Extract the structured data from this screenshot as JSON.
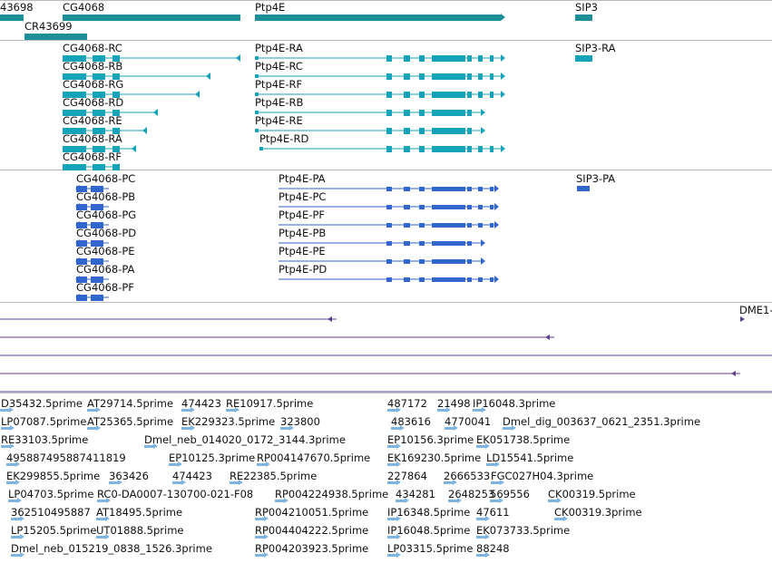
{
  "colors": {
    "gene": "#1e8f99",
    "transcript": "#14a3b8",
    "protein": "#3366cc",
    "alignment": "#5b3f8f",
    "est": "#7fb3e0",
    "divider": "#bbbbbb"
  },
  "genes": {
    "labels": [
      {
        "text": "43698"
      },
      {
        "text": "CG4068"
      },
      {
        "text": "Ptp4E"
      },
      {
        "text": "SIP3"
      },
      {
        "text": "CR43699"
      }
    ]
  },
  "transcripts": {
    "labels": [
      {
        "text": "CG4068-RC"
      },
      {
        "text": "CG4068-RB"
      },
      {
        "text": "CG4068-RG"
      },
      {
        "text": "CG4068-RD"
      },
      {
        "text": "CG4068-RE"
      },
      {
        "text": "CG4068-RA"
      },
      {
        "text": "CG4068-RF"
      },
      {
        "text": "Ptp4E-RA"
      },
      {
        "text": "Ptp4E-RC"
      },
      {
        "text": "Ptp4E-RF"
      },
      {
        "text": "Ptp4E-RB"
      },
      {
        "text": "Ptp4E-RE"
      },
      {
        "text": "Ptp4E-RD"
      },
      {
        "text": "SIP3-RA"
      }
    ]
  },
  "proteins": {
    "labels": [
      {
        "text": "CG4068-PC"
      },
      {
        "text": "CG4068-PB"
      },
      {
        "text": "CG4068-PG"
      },
      {
        "text": "CG4068-PD"
      },
      {
        "text": "CG4068-PE"
      },
      {
        "text": "CG4068-PA"
      },
      {
        "text": "CG4068-PF"
      },
      {
        "text": "Ptp4E-PA"
      },
      {
        "text": "Ptp4E-PC"
      },
      {
        "text": "Ptp4E-PF"
      },
      {
        "text": "Ptp4E-PB"
      },
      {
        "text": "Ptp4E-PE"
      },
      {
        "text": "Ptp4E-PD"
      },
      {
        "text": "SIP3-PA"
      }
    ]
  },
  "alignments": {
    "labels": [
      {
        "text": "DME1-"
      }
    ]
  },
  "ests": {
    "labels": [
      {
        "text": "D35432.5prime"
      },
      {
        "text": "AT29714.5prime"
      },
      {
        "text": "474423"
      },
      {
        "text": "RE10917.5prime"
      },
      {
        "text": "487172"
      },
      {
        "text": "21498"
      },
      {
        "text": "IP16048.3prime"
      },
      {
        "text": "LP07087.5prime"
      },
      {
        "text": "AT25365.5prime"
      },
      {
        "text": "EK229323.5prime"
      },
      {
        "text": "323800"
      },
      {
        "text": "483616"
      },
      {
        "text": "4770041"
      },
      {
        "text": "Dmel_dig_003637_0621_2351.3prime"
      },
      {
        "text": "RE33103.5prime"
      },
      {
        "text": "Dmel_neb_014020_0172_3144.3prime"
      },
      {
        "text": "EP10156.3prime"
      },
      {
        "text": "EK051738.5prime"
      },
      {
        "text": "495887495887411819"
      },
      {
        "text": "EP10125.3prime"
      },
      {
        "text": "RP004147670.5prime"
      },
      {
        "text": "EK169230.5prime"
      },
      {
        "text": "LD15541.5prime"
      },
      {
        "text": "EK299855.5prime"
      },
      {
        "text": "363426"
      },
      {
        "text": "474423"
      },
      {
        "text": "RE22385.5prime"
      },
      {
        "text": "227864"
      },
      {
        "text": "2666533"
      },
      {
        "text": "FGC027H04.3prime"
      },
      {
        "text": "LP04703.5prime"
      },
      {
        "text": "RC0-DA0007-130700-021-F08"
      },
      {
        "text": "RP004224938.5prime"
      },
      {
        "text": "434281"
      },
      {
        "text": "2648253"
      },
      {
        "text": "569556"
      },
      {
        "text": "CK00319.5prime"
      },
      {
        "text": "362510495887"
      },
      {
        "text": "AT18495.5prime"
      },
      {
        "text": "RP004210051.5prime"
      },
      {
        "text": "IP16348.5prime"
      },
      {
        "text": "47611"
      },
      {
        "text": "CK00319.3prime"
      },
      {
        "text": "LP15205.5prime"
      },
      {
        "text": "UT01888.5prime"
      },
      {
        "text": "RP004404222.5prime"
      },
      {
        "text": "IP16048.5prime"
      },
      {
        "text": "EK073733.5prime"
      },
      {
        "text": "Dmel_neb_015219_0838_1526.3prime"
      },
      {
        "text": "RP004203923.5prime"
      },
      {
        "text": "LP03315.5prime"
      },
      {
        "text": "88248"
      }
    ]
  }
}
